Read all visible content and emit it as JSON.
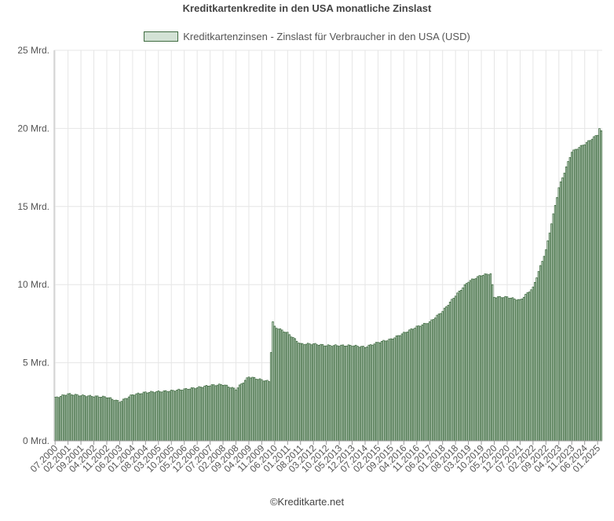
{
  "chart_data": {
    "type": "bar",
    "title": "Kreditkartenkredite in den USA monatliche Zinslast",
    "legend": [
      {
        "name": "Kreditkartenzinsen - Zinslast für Verbraucher in den USA (USD)",
        "color": "#3f6b40",
        "fill": "#d3e2d5"
      }
    ],
    "y_ticks": [
      "0 Mrd.",
      "5 Mrd.",
      "10 Mrd.",
      "15 Mrd.",
      "20 Mrd.",
      "25 Mrd."
    ],
    "ylim": [
      0,
      25
    ],
    "y_unit": "Mrd.",
    "x_ticks": [
      "07.2000",
      "02.2001",
      "09.2001",
      "04.2002",
      "11.2002",
      "06.2003",
      "01.2004",
      "08.2004",
      "03.2005",
      "10.2005",
      "05.2006",
      "12.2006",
      "07.2007",
      "02.2008",
      "09.2008",
      "04.2009",
      "11.2009",
      "06.2010",
      "01.2011",
      "08.2011",
      "03.2012",
      "10.2012",
      "05.2013",
      "12.2013",
      "07.2014",
      "02.2015",
      "09.2015",
      "04.2016",
      "11.2016",
      "06.2017",
      "01.2018",
      "08.2018",
      "03.2019",
      "10.2019",
      "05.2020",
      "12.2020",
      "07.2021",
      "02.2022",
      "09.2022",
      "04.2023",
      "11.2023",
      "06.2024",
      "01.2025"
    ],
    "x_start": "07.2000",
    "x_end": "03.2025",
    "series": [
      {
        "name": "Kreditkartenzinsen - Zinslast für Verbraucher in den USA (USD)",
        "anchors": [
          [
            "07.2000",
            2.75
          ],
          [
            "02.2001",
            3.0
          ],
          [
            "09.2001",
            2.9
          ],
          [
            "04.2002",
            2.85
          ],
          [
            "11.2002",
            2.8
          ],
          [
            "06.2003",
            2.5
          ],
          [
            "01.2004",
            2.95
          ],
          [
            "08.2004",
            3.1
          ],
          [
            "03.2005",
            3.15
          ],
          [
            "10.2005",
            3.2
          ],
          [
            "05.2006",
            3.3
          ],
          [
            "12.2006",
            3.4
          ],
          [
            "07.2007",
            3.55
          ],
          [
            "02.2008",
            3.6
          ],
          [
            "09.2008",
            3.3
          ],
          [
            "04.2009",
            4.1
          ],
          [
            "11.2009",
            3.9
          ],
          [
            "03.2010",
            3.8
          ],
          [
            "05.2010",
            7.6
          ],
          [
            "06.2010",
            7.3
          ],
          [
            "01.2011",
            6.9
          ],
          [
            "08.2011",
            6.2
          ],
          [
            "03.2012",
            6.2
          ],
          [
            "10.2012",
            6.1
          ],
          [
            "05.2013",
            6.1
          ],
          [
            "12.2013",
            6.1
          ],
          [
            "07.2014",
            6.0
          ],
          [
            "02.2015",
            6.3
          ],
          [
            "09.2015",
            6.5
          ],
          [
            "04.2016",
            6.9
          ],
          [
            "11.2016",
            7.3
          ],
          [
            "06.2017",
            7.6
          ],
          [
            "01.2018",
            8.3
          ],
          [
            "08.2018",
            9.3
          ],
          [
            "03.2019",
            10.2
          ],
          [
            "10.2019",
            10.6
          ],
          [
            "03.2020",
            10.7
          ],
          [
            "05.2020",
            9.2
          ],
          [
            "12.2020",
            9.2
          ],
          [
            "07.2021",
            9.0
          ],
          [
            "02.2022",
            9.8
          ],
          [
            "09.2022",
            12.2
          ],
          [
            "04.2023",
            16.2
          ],
          [
            "11.2023",
            18.5
          ],
          [
            "06.2024",
            19.0
          ],
          [
            "01.2025",
            19.6
          ],
          [
            "02.2025",
            20.0
          ],
          [
            "03.2025",
            19.8
          ]
        ]
      }
    ],
    "grid": true,
    "legend_position": "top-center"
  },
  "footer": "©Kreditkarte.net"
}
